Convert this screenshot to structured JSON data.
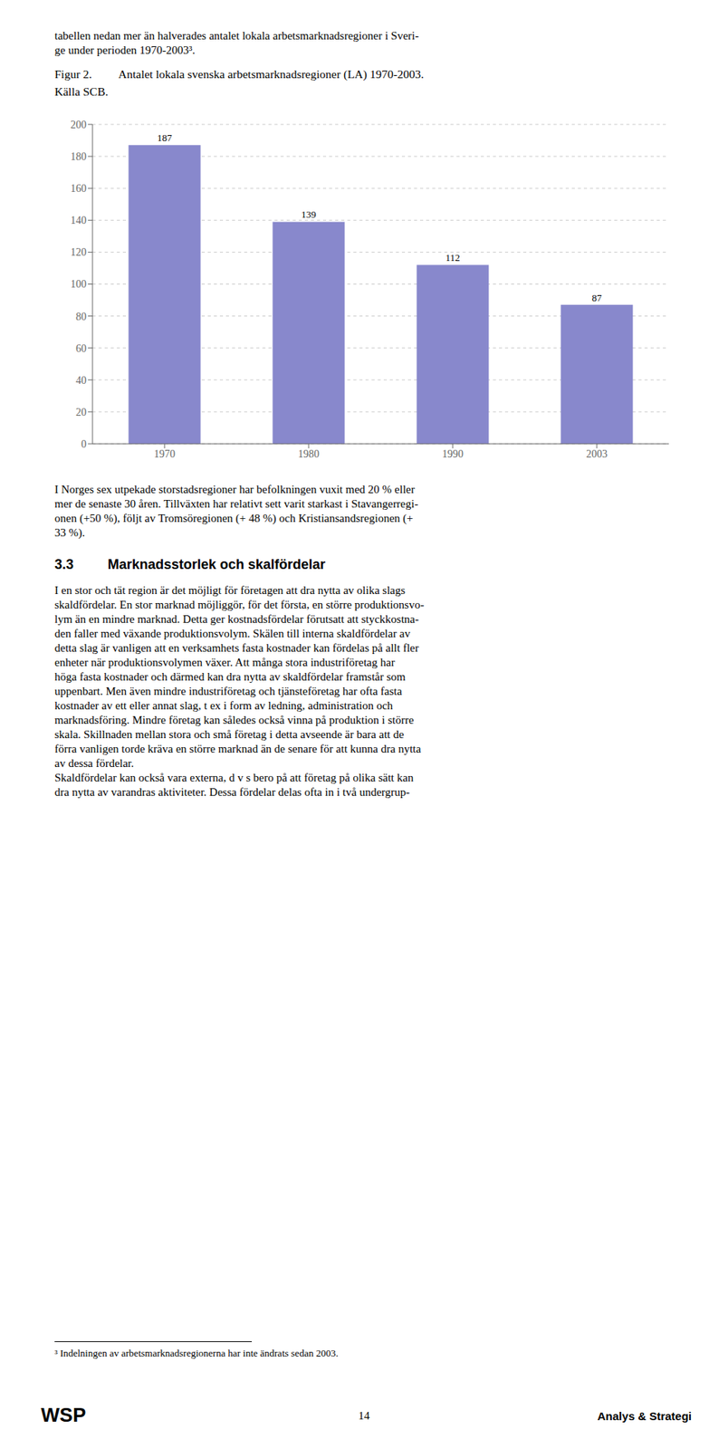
{
  "chart_data": {
    "type": "bar",
    "title": "Antalet lokala svenska arbetsmarknadsregioner (LA) 1970-2003.",
    "subtitle": "Källa SCB.",
    "categories": [
      "1970",
      "1980",
      "1990",
      "2003"
    ],
    "values": [
      187,
      139,
      112,
      87
    ],
    "color": "#8888cc",
    "ylim": [
      0,
      200
    ],
    "yticks": [
      0,
      20,
      40,
      60,
      80,
      100,
      120,
      140,
      160,
      180,
      200
    ],
    "grid": true,
    "data_labels": true,
    "annotations": [
      "tabellen nedan mer än halverades antalet lokala arbetsmarknadsregioner i Sveri-",
      "ge under perioden 1970-2003³.",
      "Figur 2.",
      "I Norges sex utpekade storstadsregioner har befolkningen vuxit med 20 % eller",
      "mer de senaste 30 åren. Tillväxten har relativt sett varit starkast i Stavangerregi-",
      "onen (+50 %), följt av Tromsöregionen (+ 48 %) och Kristiansandsregionen (+",
      "33 %).",
      "3.3",
      "Marknadsstorlek och skalfördelar",
      "I en stor och tät region är det möjligt för företagen att dra nytta av olika slags",
      "skaldfördelar. En stor marknad möjliggör, för det första, en större produktionsvo-",
      "lym än en mindre marknad. Detta ger kostnadsfördelar förutsatt att styckkostna-",
      "den faller med växande produktionsvolym. Skälen till interna skaldfördelar av",
      "detta slag är vanligen att en verksamhets fasta kostnader kan fördelas på allt fler",
      "enheter när produktionsvolymen växer. Att många stora industriföretag har",
      "höga fasta kostnader och därmed kan dra nytta av skaldfördelar framstår som",
      "uppenbart. Men även mindre industriföretag och tjänsteföretag har ofta fasta",
      "kostnader av ett eller annat slag, t ex i form av ledning, administration och",
      "marknadsföring. Mindre företag kan således också vinna på produktion i större",
      "skala. Skillnaden mellan stora och små företag i detta avseende är bara att de",
      "förra vanligen torde kräva en större marknad än de senare för att kunna dra nytta",
      "av dessa fördelar.",
      "Skaldfördelar kan också vara externa, d v s bero på att företag på olika sätt kan",
      "dra nytta av varandras aktiviteter. Dessa fördelar delas ofta in i två undergrup-",
      "³ Indelningen av arbetsmarknadsregionerna har inte ändrats sedan 2003.",
      "14",
      "Analys & Strategi",
      "WSP"
    ]
  }
}
